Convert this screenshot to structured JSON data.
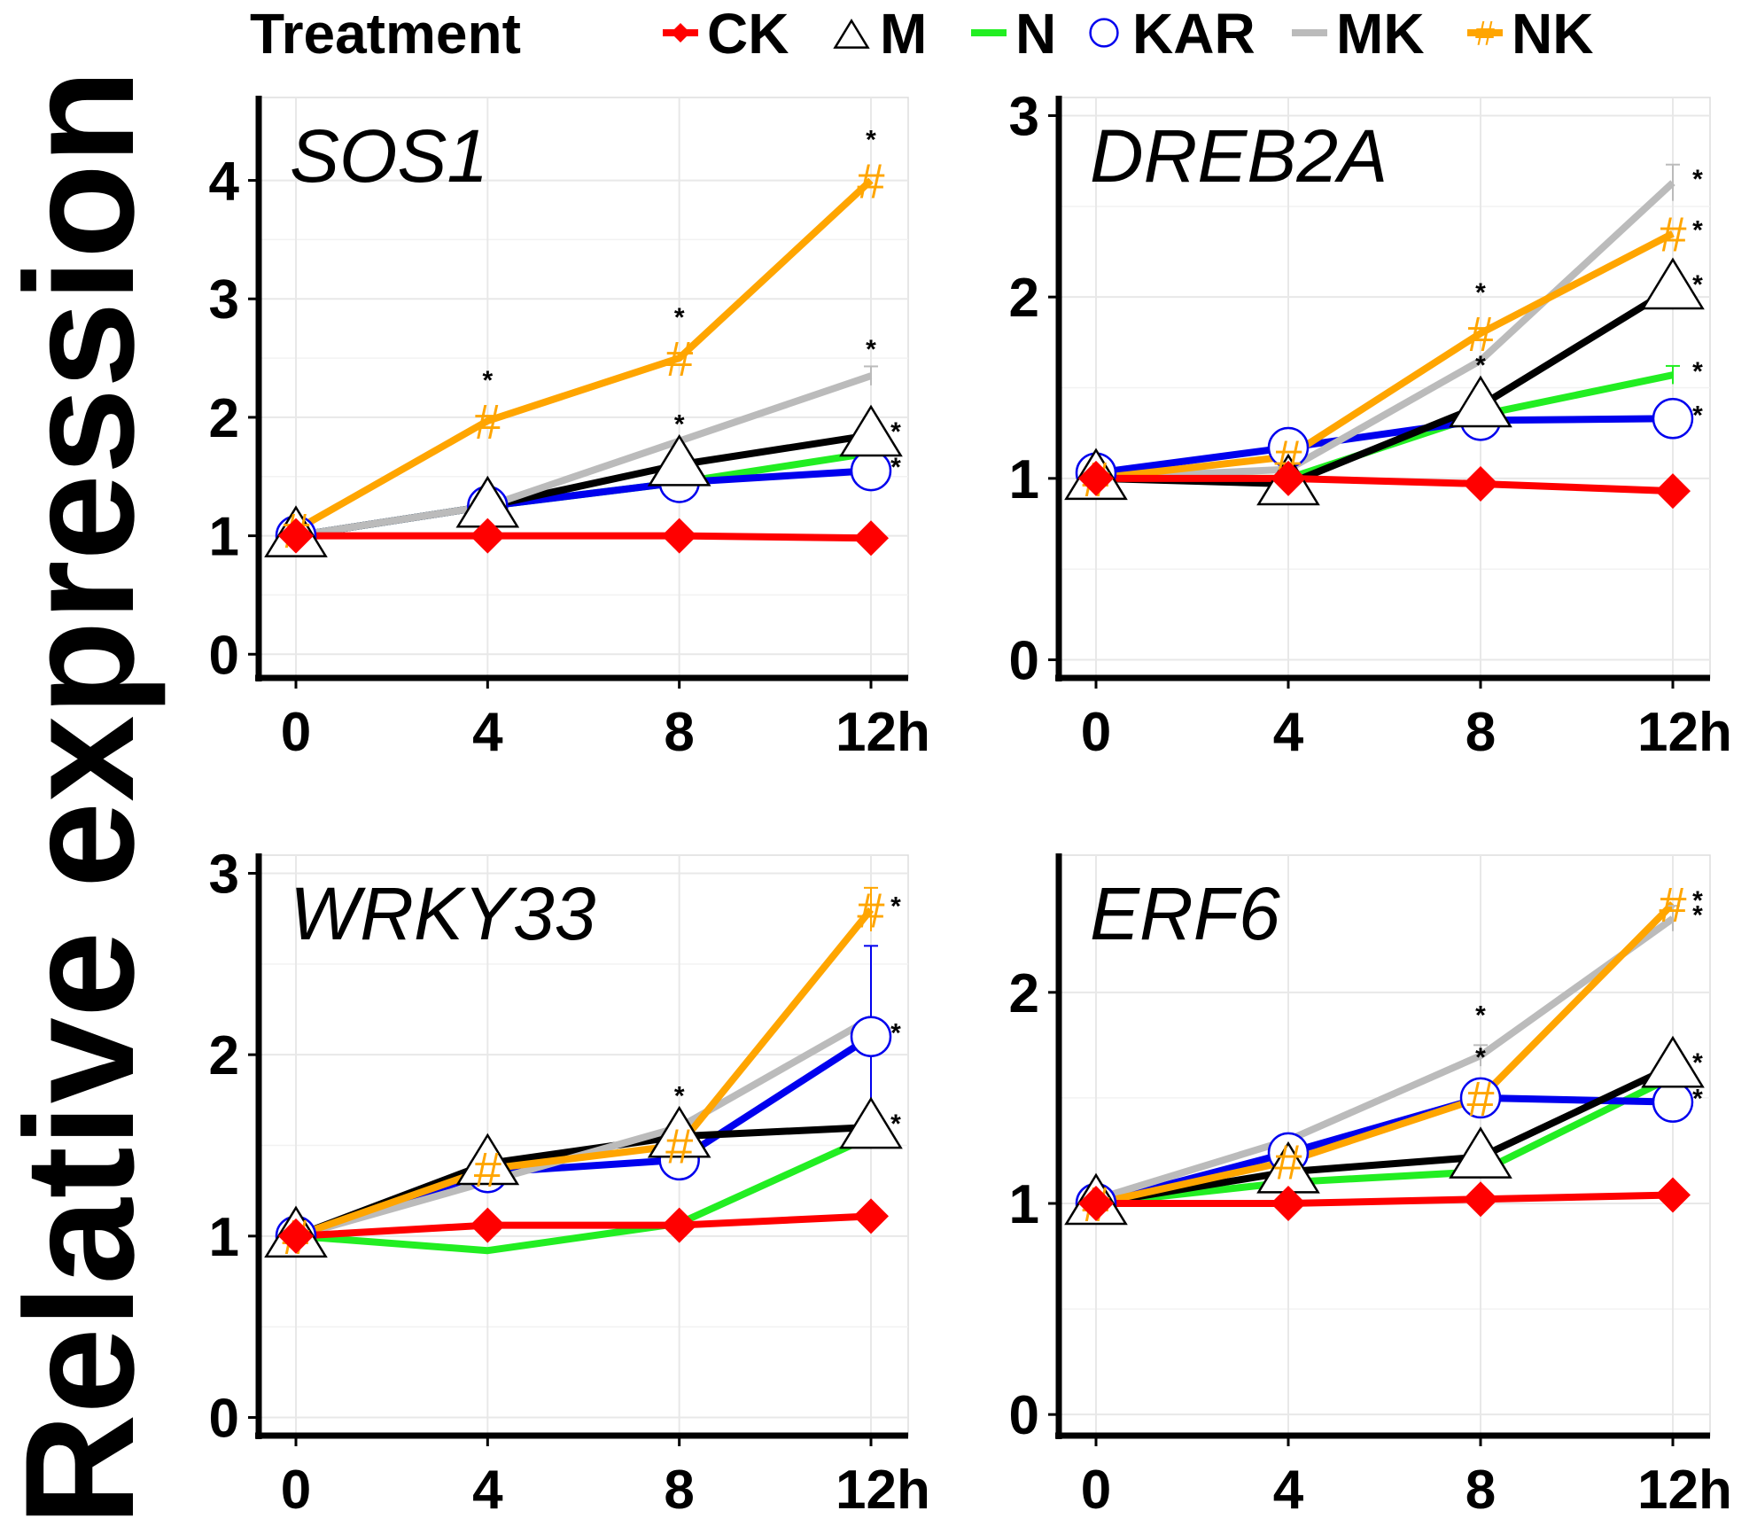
{
  "figure": {
    "y_axis_label": "Relative expression",
    "legend_title": "Treatment"
  },
  "colors": {
    "CK": "#ff0000",
    "M": "#000000",
    "N": "#22ee22",
    "KAR": "#0000ee",
    "MK": "#bbbbbb",
    "NK": "#ffa500"
  },
  "chart_data": [
    {
      "type": "line",
      "title": "SOS1",
      "xlabel": "h",
      "x": [
        0,
        4,
        8,
        12
      ],
      "x_tick_labels": [
        "0",
        "4",
        "8",
        "12h"
      ],
      "y_ticks": [
        0,
        1,
        2,
        3,
        4
      ],
      "ylim": [
        -0.2,
        4.7
      ],
      "series": [
        {
          "name": "CK",
          "marker": "diamond",
          "values": [
            1.0,
            1.0,
            1.0,
            0.98
          ]
        },
        {
          "name": "M",
          "marker": "triangle",
          "values": [
            1.0,
            1.25,
            1.6,
            1.85
          ]
        },
        {
          "name": "N",
          "marker": "none",
          "values": [
            1.0,
            1.25,
            1.45,
            1.7
          ]
        },
        {
          "name": "KAR",
          "marker": "circle",
          "values": [
            1.0,
            1.25,
            1.45,
            1.55
          ]
        },
        {
          "name": "MK",
          "marker": "none",
          "values": [
            1.0,
            1.25,
            1.8,
            2.35
          ]
        },
        {
          "name": "NK",
          "marker": "hash",
          "values": [
            1.05,
            1.97,
            2.5,
            4.0
          ]
        }
      ],
      "error_bars": [
        {
          "series": "MK",
          "x": 12,
          "value": 2.35,
          "err": 0.08
        }
      ],
      "annotations": [
        {
          "text": "*",
          "series": "NK",
          "x": 4
        },
        {
          "text": "*",
          "series": "NK",
          "x": 8
        },
        {
          "text": "*",
          "series": "NK",
          "x": 12
        },
        {
          "text": "*",
          "series": "M",
          "x": 8
        },
        {
          "text": "*",
          "series": "MK",
          "x": 12
        },
        {
          "text": "*",
          "series": "M",
          "x": 12
        },
        {
          "text": "*",
          "series": "KAR",
          "x": 12
        }
      ]
    },
    {
      "type": "line",
      "title": "DREB2A",
      "xlabel": "h",
      "x": [
        0,
        4,
        8,
        12
      ],
      "x_tick_labels": [
        "0",
        "4",
        "8",
        "12h"
      ],
      "y_ticks": [
        0,
        1,
        2,
        3
      ],
      "ylim": [
        -0.1,
        3.1
      ],
      "series": [
        {
          "name": "CK",
          "marker": "diamond",
          "values": [
            1.0,
            1.0,
            0.97,
            0.93
          ]
        },
        {
          "name": "M",
          "marker": "triangle",
          "values": [
            1.0,
            0.97,
            1.4,
            2.05
          ]
        },
        {
          "name": "N",
          "marker": "none",
          "values": [
            1.0,
            1.0,
            1.35,
            1.57
          ]
        },
        {
          "name": "KAR",
          "marker": "circle",
          "values": [
            1.03,
            1.17,
            1.32,
            1.33
          ]
        },
        {
          "name": "MK",
          "marker": "none",
          "values": [
            1.0,
            1.05,
            1.65,
            2.63
          ]
        },
        {
          "name": "NK",
          "marker": "hash",
          "values": [
            1.0,
            1.12,
            1.8,
            2.35
          ]
        }
      ],
      "error_bars": [
        {
          "series": "MK",
          "x": 12,
          "value": 2.63,
          "err": 0.1
        },
        {
          "series": "N",
          "x": 12,
          "value": 1.57,
          "err": 0.05
        }
      ],
      "annotations": [
        {
          "text": "*",
          "series": "NK",
          "x": 8
        },
        {
          "text": "*",
          "series": "M",
          "x": 8
        },
        {
          "text": "*",
          "series": "MK",
          "x": 12
        },
        {
          "text": "*",
          "series": "NK",
          "x": 12
        },
        {
          "text": "*",
          "series": "M",
          "x": 12
        },
        {
          "text": "*",
          "series": "N",
          "x": 12
        },
        {
          "text": "*",
          "series": "KAR",
          "x": 12
        }
      ]
    },
    {
      "type": "line",
      "title": "WRKY33",
      "xlabel": "h",
      "x": [
        0,
        4,
        8,
        12
      ],
      "x_tick_labels": [
        "0",
        "4",
        "8",
        "12h"
      ],
      "y_ticks": [
        0,
        1,
        2,
        3
      ],
      "ylim": [
        -0.1,
        3.1
      ],
      "series": [
        {
          "name": "CK",
          "marker": "diamond",
          "values": [
            1.0,
            1.06,
            1.06,
            1.11
          ]
        },
        {
          "name": "M",
          "marker": "triangle",
          "values": [
            1.0,
            1.4,
            1.55,
            1.6
          ]
        },
        {
          "name": "N",
          "marker": "none",
          "values": [
            1.0,
            0.92,
            1.07,
            1.55
          ]
        },
        {
          "name": "KAR",
          "marker": "circle",
          "values": [
            1.0,
            1.35,
            1.42,
            2.1
          ]
        },
        {
          "name": "MK",
          "marker": "none",
          "values": [
            1.0,
            1.3,
            1.6,
            2.2
          ]
        },
        {
          "name": "NK",
          "marker": "hash",
          "values": [
            1.0,
            1.37,
            1.5,
            2.8
          ]
        }
      ],
      "error_bars": [
        {
          "series": "KAR",
          "x": 12,
          "value": 2.1,
          "err": 0.5
        },
        {
          "series": "NK",
          "x": 12,
          "value": 2.8,
          "err": 0.12
        }
      ],
      "annotations": [
        {
          "text": "*",
          "series": "M",
          "x": 8
        },
        {
          "text": "*",
          "series": "NK",
          "x": 12
        },
        {
          "text": "*",
          "series": "KAR",
          "x": 12
        },
        {
          "text": "*",
          "series": "M",
          "x": 12
        }
      ]
    },
    {
      "type": "line",
      "title": "ERF6",
      "xlabel": "h",
      "x": [
        0,
        4,
        8,
        12
      ],
      "x_tick_labels": [
        "0",
        "4",
        "8",
        "12h"
      ],
      "y_ticks": [
        0,
        1,
        2
      ],
      "ylim": [
        -0.1,
        2.65
      ],
      "series": [
        {
          "name": "CK",
          "marker": "diamond",
          "values": [
            1.0,
            1.0,
            1.02,
            1.04
          ]
        },
        {
          "name": "M",
          "marker": "triangle",
          "values": [
            1.0,
            1.15,
            1.22,
            1.65
          ]
        },
        {
          "name": "N",
          "marker": "none",
          "values": [
            1.0,
            1.1,
            1.15,
            1.6
          ]
        },
        {
          "name": "KAR",
          "marker": "circle",
          "values": [
            1.0,
            1.24,
            1.5,
            1.48
          ]
        },
        {
          "name": "MK",
          "marker": "none",
          "values": [
            1.02,
            1.3,
            1.7,
            2.35
          ]
        },
        {
          "name": "NK",
          "marker": "hash",
          "values": [
            1.0,
            1.2,
            1.5,
            2.42
          ]
        }
      ],
      "error_bars": [
        {
          "series": "MK",
          "x": 8,
          "value": 1.7,
          "err": 0.05
        },
        {
          "series": "MK",
          "x": 12,
          "value": 2.35,
          "err": 0.06
        }
      ],
      "annotations": [
        {
          "text": "*",
          "series": "MK",
          "x": 8
        },
        {
          "text": "*",
          "series": "NK",
          "x": 8
        },
        {
          "text": "*",
          "series": "NK",
          "x": 12
        },
        {
          "text": "*",
          "series": "MK",
          "x": 12
        },
        {
          "text": "*",
          "series": "M",
          "x": 12
        },
        {
          "text": "*",
          "series": "KAR",
          "x": 12
        }
      ]
    }
  ]
}
